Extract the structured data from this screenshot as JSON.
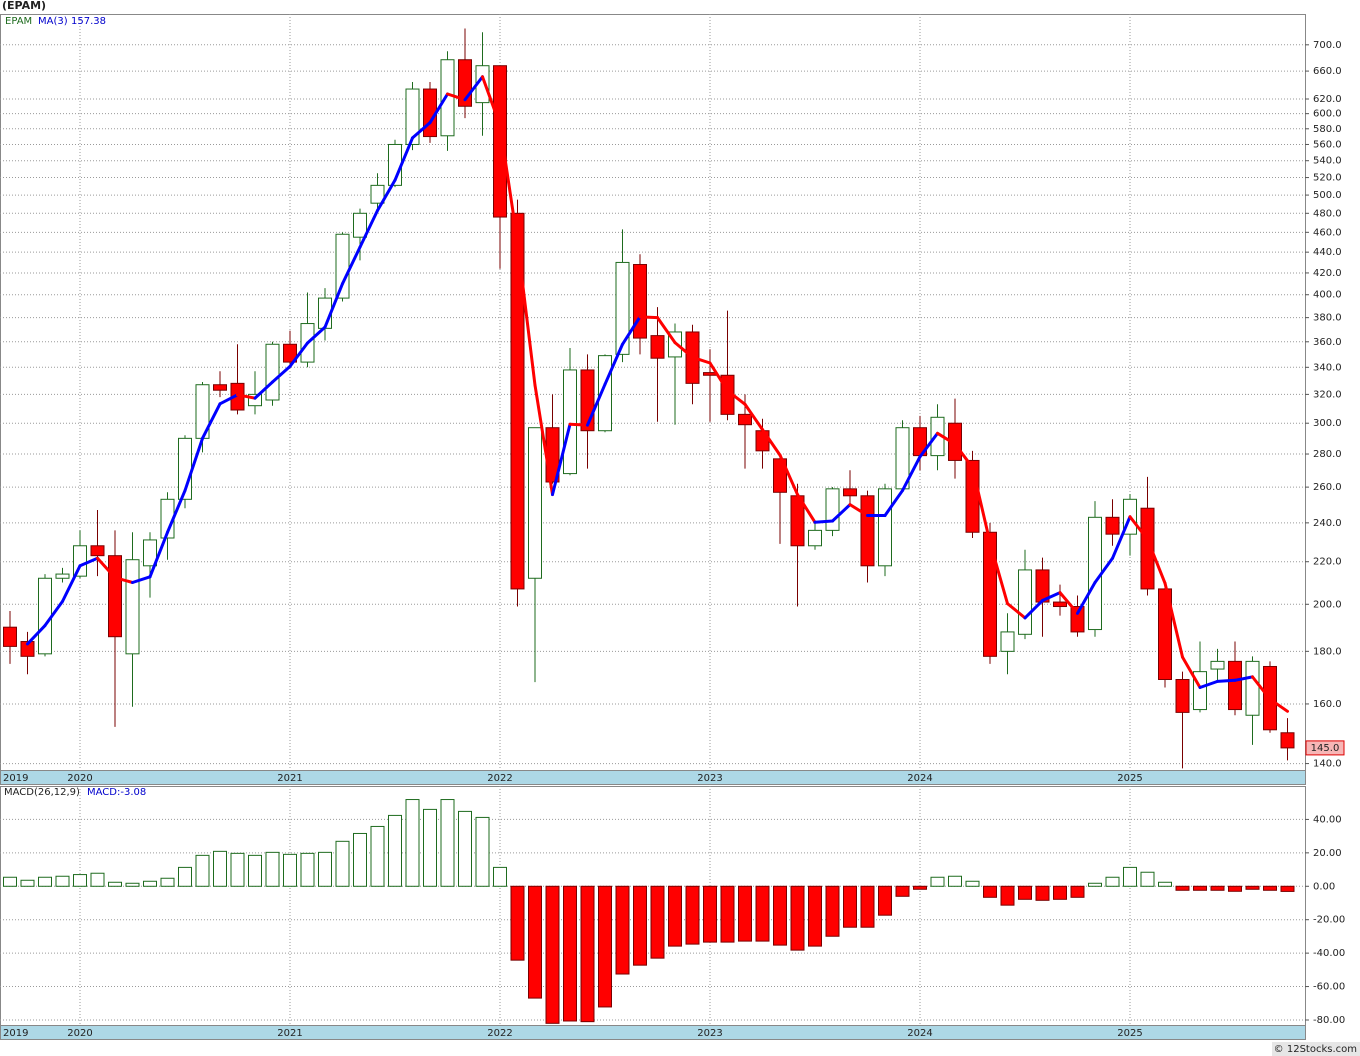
{
  "chart_data": [
    {
      "type": "candlestick",
      "title": "(EPAM)",
      "name": "EPAM",
      "categories": [
        "2019",
        null,
        null,
        null,
        "2020",
        null,
        null,
        null,
        null,
        null,
        null,
        null,
        null,
        null,
        null,
        null,
        "2021",
        null,
        null,
        null,
        null,
        null,
        null,
        null,
        null,
        null,
        null,
        null,
        "2022",
        null,
        null,
        null,
        null,
        null,
        null,
        null,
        null,
        null,
        null,
        null,
        "2023",
        null,
        null,
        null,
        null,
        null,
        null,
        null,
        null,
        null,
        null,
        null,
        "2024",
        null,
        null,
        null,
        null,
        null,
        null,
        null,
        null,
        null,
        null,
        null,
        "2025",
        null,
        null,
        null,
        null,
        null,
        null,
        null,
        null,
        null
      ],
      "open": [
        190,
        184,
        179,
        212,
        213,
        228,
        223,
        179,
        218,
        232,
        253,
        290,
        327,
        328,
        312,
        316,
        358,
        344,
        371,
        397,
        455,
        491,
        511,
        560,
        634,
        571,
        677,
        615,
        668,
        480,
        212,
        297,
        268,
        338,
        295,
        350,
        428,
        365,
        348,
        368,
        336,
        334,
        306,
        295,
        277,
        255,
        228,
        236,
        259,
        255,
        218,
        259,
        297,
        279,
        300,
        276,
        235,
        180,
        187,
        216,
        201,
        199,
        189,
        243,
        234,
        248,
        207,
        169,
        158,
        173,
        176,
        156,
        174,
        150
      ],
      "high": [
        197,
        188,
        214,
        217,
        236,
        247,
        236,
        235,
        235,
        257,
        292,
        329,
        337,
        358,
        337,
        360,
        369,
        402,
        406,
        460,
        485,
        525,
        566,
        644,
        644,
        690,
        726,
        720,
        668,
        495,
        297,
        320,
        355,
        350,
        350,
        463,
        438,
        389,
        375,
        374,
        354,
        386,
        320,
        303,
        280,
        262,
        240,
        260,
        270,
        258,
        262,
        302,
        305,
        313,
        317,
        282,
        240,
        196,
        226,
        222,
        209,
        204,
        252,
        253,
        256,
        266,
        210,
        172,
        184,
        181,
        184,
        178,
        176,
        155
      ],
      "low": [
        175,
        171,
        178,
        210,
        212,
        213,
        152,
        159,
        203,
        221,
        248,
        281,
        318,
        306,
        306,
        312,
        341,
        340,
        361,
        394,
        432,
        481,
        509,
        553,
        562,
        552,
        594,
        571,
        424,
        199,
        168,
        262,
        267,
        271,
        294,
        344,
        350,
        301,
        299,
        313,
        301,
        302,
        271,
        271,
        229,
        199,
        226,
        233,
        250,
        210,
        213,
        257,
        270,
        270,
        265,
        232,
        175,
        171,
        185,
        186,
        195,
        186,
        186,
        228,
        223,
        204,
        166,
        138.5,
        157,
        168,
        156,
        146,
        150,
        141
      ],
      "close": [
        182,
        178,
        212,
        214,
        228,
        223,
        186,
        221,
        231,
        253,
        290,
        327,
        323,
        309,
        320,
        358,
        344,
        375,
        397,
        458,
        480,
        511,
        560,
        634,
        570,
        677,
        610,
        668,
        476,
        207,
        297,
        263,
        338,
        295,
        349,
        430,
        363,
        347,
        368,
        328,
        334,
        306,
        299,
        282,
        257,
        228,
        236,
        259,
        255,
        218,
        259,
        297,
        279,
        304,
        276,
        235,
        178,
        188,
        216,
        201,
        199,
        188,
        243,
        234,
        253,
        207,
        169,
        157,
        172,
        176,
        158,
        176,
        151,
        145
      ],
      "up_color": "#ffffff",
      "up_edge": "#1e6b1e",
      "down_color": "#ff0000",
      "down_edge": "#7a0000",
      "series": [
        {
          "name": "MA(3)",
          "last_value": 157.38,
          "up_color": "#0000ff",
          "down_color": "#ff0000",
          "values": [
            null,
            183,
            190.7,
            201.3,
            218,
            221.7,
            212.3,
            210,
            212.7,
            235,
            258,
            290,
            313.3,
            319.7,
            317.3,
            329,
            340.7,
            359,
            372,
            410,
            445,
            483,
            517,
            568.3,
            588,
            627,
            619,
            651.7,
            584.7,
            450.3,
            326.7,
            255.7,
            299.3,
            298.7,
            327.3,
            358,
            380.7,
            380,
            359.3,
            347.7,
            343.3,
            322.7,
            313,
            295.7,
            279.3,
            255.7,
            240.3,
            241,
            250,
            244,
            244,
            258,
            278.3,
            293.3,
            286.3,
            271.7,
            229.7,
            200.3,
            194,
            201.7,
            205.3,
            196,
            210,
            221.7,
            243.3,
            231.3,
            209.7,
            177.7,
            166,
            168.3,
            168.7,
            170,
            161.7,
            157.38
          ]
        }
      ],
      "last_price": {
        "value": 145,
        "label": "145.0"
      },
      "log_y": true,
      "grid": true,
      "ylim": [
        138,
        750
      ],
      "yticks": [
        {
          "value": 140,
          "label": "140.0"
        },
        {
          "value": 160,
          "label": "160.0"
        },
        {
          "value": 180,
          "label": "180.0"
        },
        {
          "value": 200,
          "label": "200.0"
        },
        {
          "value": 220,
          "label": "220.0"
        },
        {
          "value": 240,
          "label": "240.0"
        },
        {
          "value": 260,
          "label": "260.0"
        },
        {
          "value": 280,
          "label": "280.0"
        },
        {
          "value": 300,
          "label": "300.0"
        },
        {
          "value": 320,
          "label": "320.0"
        },
        {
          "value": 340,
          "label": "340.0"
        },
        {
          "value": 360,
          "label": "360.0"
        },
        {
          "value": 380,
          "label": "380.0"
        },
        {
          "value": 400,
          "label": "400.0"
        },
        {
          "value": 420,
          "label": "420.0"
        },
        {
          "value": 440,
          "label": "440.0"
        },
        {
          "value": 460,
          "label": "460.0"
        },
        {
          "value": 480,
          "label": "480.0"
        },
        {
          "value": 500,
          "label": "500.0"
        },
        {
          "value": 520,
          "label": "520.0"
        },
        {
          "value": 540,
          "label": "540.0"
        },
        {
          "value": 560,
          "label": "560.0"
        },
        {
          "value": 580,
          "label": "580.0"
        },
        {
          "value": 600,
          "label": "600.0"
        },
        {
          "value": 620,
          "label": "620.0"
        },
        {
          "value": 660,
          "label": "660.0"
        },
        {
          "value": 700,
          "label": "700.0"
        }
      ]
    },
    {
      "type": "macd_histogram",
      "name": "MACD(26,12,9)",
      "value_text": "MACD:-3.08",
      "categories": [
        "2019",
        null,
        null,
        null,
        "2020",
        null,
        null,
        null,
        null,
        null,
        null,
        null,
        null,
        null,
        null,
        null,
        "2021",
        null,
        null,
        null,
        null,
        null,
        null,
        null,
        null,
        null,
        null,
        null,
        "2022",
        null,
        null,
        null,
        null,
        null,
        null,
        null,
        null,
        null,
        null,
        null,
        "2023",
        null,
        null,
        null,
        null,
        null,
        null,
        null,
        null,
        null,
        null,
        null,
        "2024",
        null,
        null,
        null,
        null,
        null,
        null,
        null,
        null,
        null,
        null,
        null,
        "2025",
        null,
        null,
        null,
        null,
        null,
        null,
        null,
        null,
        null
      ],
      "values": [
        5.4,
        3.6,
        5.4,
        6,
        7,
        7.8,
        2.4,
        1.8,
        3,
        4.8,
        11.3,
        18.5,
        20.9,
        19.7,
        18.5,
        20.3,
        19.1,
        19.7,
        20.3,
        26.9,
        31.6,
        35.8,
        42.4,
        51.9,
        46,
        51.9,
        44.8,
        41.2,
        11.3,
        -44.2,
        -66.9,
        -82,
        -80.6,
        -81,
        -72.2,
        -52.5,
        -47.2,
        -43,
        -35.8,
        -34.6,
        -33.4,
        -33.4,
        -32.8,
        -32.8,
        -35.2,
        -38.2,
        -35.8,
        -29.9,
        -24.5,
        -24.5,
        -17.3,
        -6,
        -1.8,
        5.4,
        6,
        3,
        -6.6,
        -11.3,
        -7.8,
        -8.4,
        -7.8,
        -6.6,
        1.8,
        5.4,
        11.3,
        8.4,
        2.4,
        -2.4,
        -2.4,
        -2.4,
        -3,
        -1.8,
        -2.4,
        -3.08
      ],
      "pos_color": "#ffffff",
      "pos_edge": "#1e6b1e",
      "neg_color": "#ff0000",
      "neg_edge": "#7a0000",
      "grid": true,
      "ylim": [
        -83,
        60
      ],
      "yticks": [
        {
          "value": 40,
          "label": "40.00"
        },
        {
          "value": 20,
          "label": "20.00"
        },
        {
          "value": 0,
          "label": "0.00"
        },
        {
          "value": -20,
          "label": "-20.00"
        },
        {
          "value": -40,
          "label": "-40.00"
        },
        {
          "value": -60,
          "label": "-60.00"
        },
        {
          "value": -80,
          "label": "-80.00"
        }
      ]
    }
  ],
  "credit": "© 12Stocks.com"
}
